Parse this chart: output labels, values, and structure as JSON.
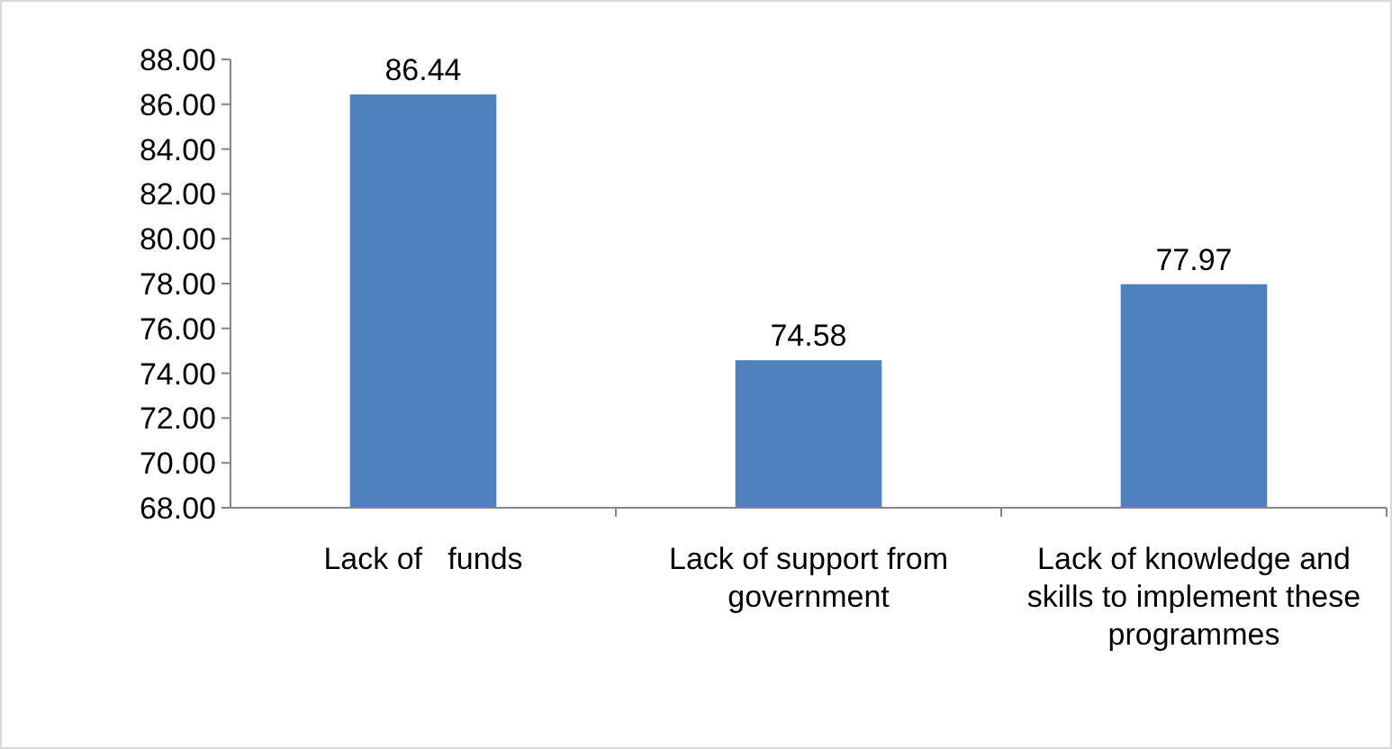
{
  "chart_data": {
    "type": "bar",
    "categories": [
      "Lack of   funds",
      "Lack of support from government",
      "Lack of knowledge and skills to implement these programmes"
    ],
    "values": [
      86.44,
      74.58,
      77.97
    ],
    "color": "#4f81bd",
    "data_labels": true,
    "ylim": [
      68,
      88
    ],
    "yticks": [
      {
        "value": 68,
        "label": "68.00"
      },
      {
        "value": 70,
        "label": "70.00"
      },
      {
        "value": 72,
        "label": "72.00"
      },
      {
        "value": 74,
        "label": "74.00"
      },
      {
        "value": 76,
        "label": "76.00"
      },
      {
        "value": 78,
        "label": "78.00"
      },
      {
        "value": 80,
        "label": "80.00"
      },
      {
        "value": 82,
        "label": "82.00"
      },
      {
        "value": 84,
        "label": "84.00"
      },
      {
        "value": 86,
        "label": "86.00"
      },
      {
        "value": 88,
        "label": "88.00"
      }
    ]
  }
}
